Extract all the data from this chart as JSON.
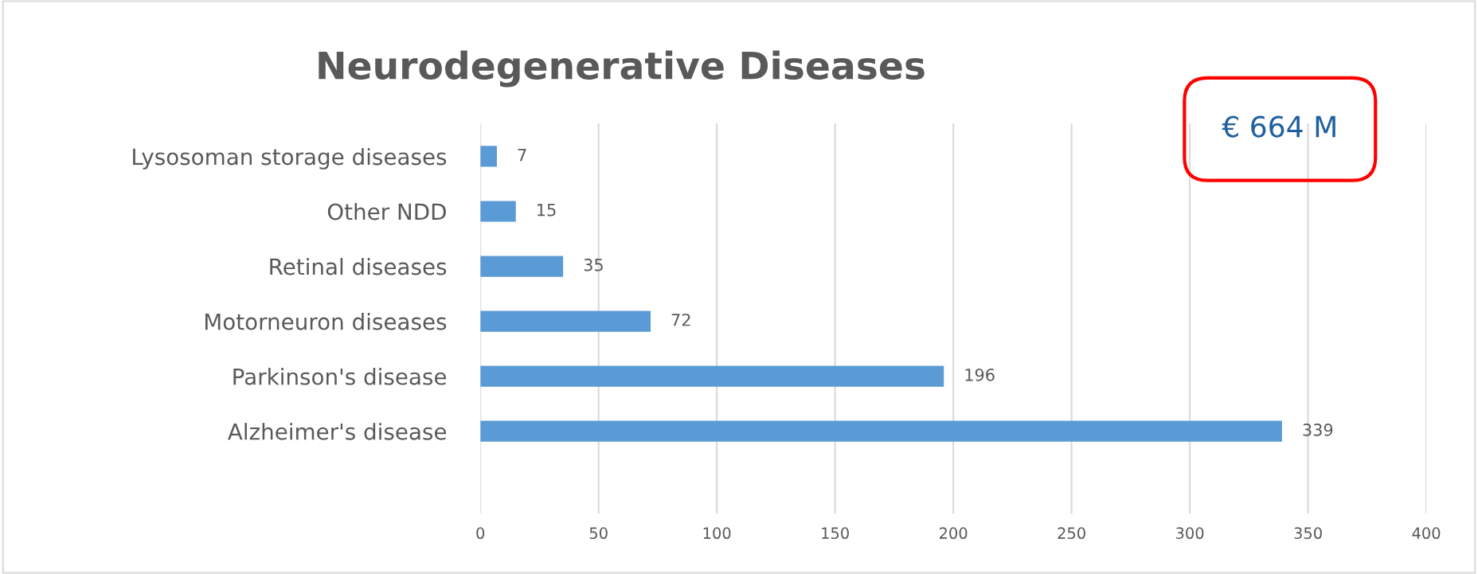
{
  "chart_data": {
    "type": "bar",
    "orientation": "horizontal",
    "title": "Neurodegenerative Diseases",
    "categories": [
      "Lysosoman storage diseases",
      "Other NDD",
      "Retinal diseases",
      "Motorneuron diseases",
      "Parkinson's disease",
      "Alzheimer's disease"
    ],
    "values": [
      7,
      15,
      35,
      72,
      196,
      339
    ],
    "color": "#5b9bd5",
    "xlim": [
      0,
      400
    ],
    "xticks": [
      0,
      50,
      100,
      150,
      200,
      250,
      300,
      350,
      400
    ],
    "grid": "x",
    "data_labels": true,
    "legend": false,
    "annotations": [
      "€ 664 M"
    ]
  }
}
